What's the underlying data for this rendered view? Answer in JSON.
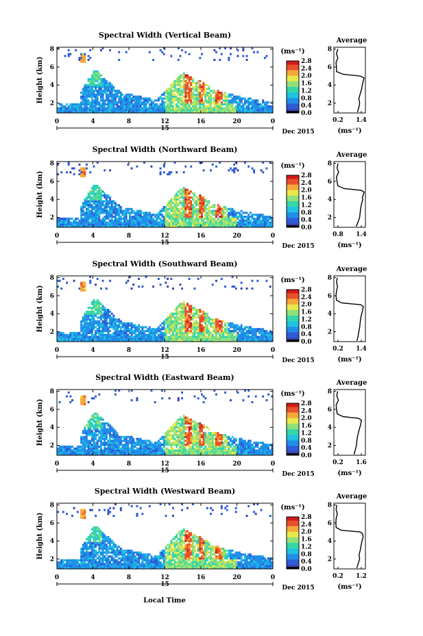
{
  "figure": {
    "xlabel": "Local Time",
    "date_label": "Dec 2015"
  },
  "colors": {
    "palette": [
      "#000000",
      "#3a3fa8",
      "#2f5ad6",
      "#1f8ee8",
      "#20c2e0",
      "#36d6a8",
      "#8fe07a",
      "#e8e84a",
      "#f5a83a",
      "#e8502a",
      "#d01a1a"
    ]
  },
  "chart_data": [
    {
      "type": "heatmap",
      "title": "Spectral Width (Vertical Beam)",
      "ylabel": "Height (km)",
      "xticks": [
        "0",
        "4",
        "8",
        "12",
        "16",
        "20",
        "0"
      ],
      "xrange": [
        0,
        24
      ],
      "day_tick": "15",
      "yticks": [
        "2",
        "4",
        "6",
        "8"
      ],
      "yrange": [
        0.9,
        8.2
      ],
      "colorbar": {
        "unit": "(ms⁻¹)",
        "ticks": [
          "2.8",
          "2.4",
          "2.0",
          "1.6",
          "1.2",
          "0.8",
          "0.4",
          "0.0"
        ],
        "range": [
          0.0,
          2.8
        ]
      },
      "profile": {
        "title": "Average",
        "xlabel": "(ms⁻¹)",
        "xticks": [
          "0.2",
          "1.4"
        ],
        "xrange": [
          0.2,
          1.4
        ],
        "yticks": [
          "2",
          "4",
          "6",
          "8"
        ],
        "yrange": [
          0.9,
          8.2
        ],
        "heights": [
          1.0,
          1.5,
          2.0,
          2.5,
          3.0,
          3.5,
          4.0,
          4.2,
          4.5,
          4.8,
          5.0,
          5.2,
          5.5,
          6.0,
          6.5,
          7.0,
          7.5,
          8.0
        ],
        "values": [
          1.1,
          1.15,
          1.18,
          1.15,
          1.2,
          1.25,
          1.28,
          1.3,
          1.32,
          1.35,
          1.2,
          0.55,
          0.3,
          0.3,
          0.28,
          0.35,
          0.3,
          0.35
        ]
      }
    },
    {
      "type": "heatmap",
      "title": "Spectral Width (Northward Beam)",
      "ylabel": "Height (km)",
      "xticks": [
        "0",
        "4",
        "8",
        "12",
        "16",
        "20",
        "0"
      ],
      "xrange": [
        0,
        24
      ],
      "day_tick": "15",
      "yticks": [
        "2",
        "4",
        "6",
        "8"
      ],
      "yrange": [
        0.9,
        8.2
      ],
      "colorbar": {
        "unit": "(ms⁻¹)",
        "ticks": [
          "2.8",
          "2.4",
          "2.0",
          "1.6",
          "1.2",
          "0.8",
          "0.4",
          "0.0"
        ],
        "range": [
          0.0,
          2.8
        ]
      },
      "profile": {
        "title": "Average",
        "xlabel": "(ms⁻¹)",
        "xticks": [
          "0.8",
          "1.4"
        ],
        "xrange": [
          0.2,
          1.4
        ],
        "yticks": [
          "2",
          "4",
          "6",
          "8"
        ],
        "yrange": [
          0.9,
          8.2
        ],
        "heights": [
          1.0,
          1.5,
          2.0,
          2.5,
          3.0,
          3.5,
          4.0,
          4.2,
          4.5,
          4.8,
          5.0,
          5.2,
          5.5,
          6.0,
          6.5,
          7.0,
          7.5,
          8.0
        ],
        "values": [
          1.05,
          1.12,
          1.18,
          1.2,
          1.22,
          1.25,
          1.3,
          1.28,
          1.32,
          1.35,
          1.25,
          0.6,
          0.35,
          0.32,
          0.3,
          0.38,
          0.32,
          0.36
        ]
      }
    },
    {
      "type": "heatmap",
      "title": "Spectral Width (Southward Beam)",
      "ylabel": "Height (km)",
      "xticks": [
        "0",
        "4",
        "8",
        "12",
        "16",
        "20",
        "0"
      ],
      "xrange": [
        0,
        24
      ],
      "day_tick": "15",
      "yticks": [
        "2",
        "4",
        "6",
        "8"
      ],
      "yrange": [
        0.9,
        8.2
      ],
      "colorbar": {
        "unit": "(ms⁻¹)",
        "ticks": [
          "2.8",
          "2.4",
          "2.0",
          "1.6",
          "1.2",
          "0.8",
          "0.4",
          "0.0"
        ],
        "range": [
          0.0,
          2.8
        ]
      },
      "profile": {
        "title": "Average",
        "xlabel": "(ms⁻¹)",
        "xticks": [
          "0.2",
          "1.4"
        ],
        "xrange": [
          0.2,
          1.4
        ],
        "yticks": [
          "2",
          "4",
          "6",
          "8"
        ],
        "yrange": [
          0.9,
          8.2
        ],
        "heights": [
          1.0,
          1.5,
          2.0,
          2.5,
          3.0,
          3.5,
          4.0,
          4.2,
          4.5,
          4.8,
          5.0,
          5.2,
          5.5,
          6.0,
          6.5,
          7.0,
          7.5,
          8.0
        ],
        "values": [
          1.08,
          1.12,
          1.15,
          1.18,
          1.2,
          1.22,
          1.26,
          1.28,
          1.3,
          1.32,
          1.22,
          0.5,
          0.3,
          0.28,
          0.3,
          0.34,
          0.3,
          0.33
        ]
      }
    },
    {
      "type": "heatmap",
      "title": "Spectral Width (Eastward Beam)",
      "ylabel": "Height (km)",
      "xticks": [
        "0",
        "4",
        "8",
        "12",
        "16",
        "20",
        "0"
      ],
      "xrange": [
        0,
        24
      ],
      "day_tick": "15",
      "yticks": [
        "2",
        "4",
        "6",
        "8"
      ],
      "yrange": [
        0.9,
        8.2
      ],
      "colorbar": {
        "unit": "(ms⁻¹)",
        "ticks": [
          "2.8",
          "2.4",
          "2.0",
          "1.6",
          "1.2",
          "0.8",
          "0.4",
          "0.0"
        ],
        "range": [
          0.0,
          2.8
        ]
      },
      "profile": {
        "title": "Average",
        "xlabel": "(ms⁻¹)",
        "xticks": [
          "0.2",
          "1.6"
        ],
        "xrange": [
          0.2,
          1.6
        ],
        "yticks": [
          "2",
          "4",
          "6",
          "8"
        ],
        "yrange": [
          0.9,
          8.2
        ],
        "heights": [
          1.0,
          1.5,
          2.0,
          2.5,
          3.0,
          3.5,
          4.0,
          4.2,
          4.5,
          4.8,
          5.0,
          5.2,
          5.5,
          6.0,
          6.5,
          7.0,
          7.5,
          8.0
        ],
        "values": [
          1.1,
          1.15,
          1.2,
          1.22,
          1.25,
          1.3,
          1.35,
          1.38,
          1.4,
          1.42,
          1.3,
          0.6,
          0.35,
          0.32,
          0.3,
          0.4,
          0.33,
          0.36
        ]
      }
    },
    {
      "type": "heatmap",
      "title": "Spectral Width (Westward Beam)",
      "ylabel": "Height (km)",
      "xticks": [
        "0",
        "4",
        "8",
        "12",
        "16",
        "20",
        "0"
      ],
      "xrange": [
        0,
        24
      ],
      "day_tick": "15",
      "yticks": [
        "2",
        "4",
        "6",
        "8"
      ],
      "yrange": [
        0.9,
        8.2
      ],
      "colorbar": {
        "unit": "(ms⁻¹)",
        "ticks": [
          "2.8",
          "2.4",
          "2.0",
          "1.6",
          "1.2",
          "0.8",
          "0.4",
          "0.0"
        ],
        "range": [
          0.0,
          2.8
        ]
      },
      "profile": {
        "title": "Average",
        "xlabel": "(ms⁻¹)",
        "xticks": [
          "0.2",
          "1.2"
        ],
        "xrange": [
          0.2,
          1.3
        ],
        "yticks": [
          "2",
          "4",
          "6",
          "8"
        ],
        "yrange": [
          0.9,
          8.2
        ],
        "heights": [
          1.0,
          1.5,
          2.0,
          2.5,
          3.0,
          3.5,
          4.0,
          4.2,
          4.5,
          4.8,
          5.0,
          5.2,
          5.5,
          6.0,
          6.5,
          7.0,
          7.5,
          8.0
        ],
        "values": [
          1.0,
          1.05,
          1.1,
          1.08,
          1.12,
          1.15,
          1.18,
          1.2,
          1.22,
          1.2,
          1.12,
          0.45,
          0.28,
          0.27,
          0.28,
          0.32,
          0.28,
          0.3
        ]
      }
    }
  ]
}
